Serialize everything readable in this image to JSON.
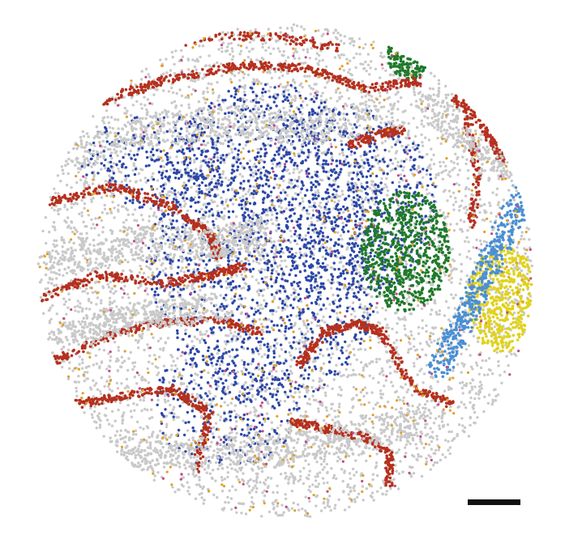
{
  "figure": {
    "description_kind": "spatial-transcriptomics-style cell scatter in a circular tissue section",
    "background": "#ffffff",
    "scale_bar_color": "#111111",
    "cell_types": [
      {
        "key": "grey",
        "color": "#c9c9c9"
      },
      {
        "key": "red",
        "color": "#b5301e"
      },
      {
        "key": "blue",
        "color": "#2c47a8"
      },
      {
        "key": "green",
        "color": "#1f7a2a"
      },
      {
        "key": "yellow",
        "color": "#e0d21a"
      },
      {
        "key": "lightblue",
        "color": "#4a8fd4"
      },
      {
        "key": "orange",
        "color": "#e0a02a"
      },
      {
        "key": "pink",
        "color": "#c24a8a"
      }
    ]
  }
}
